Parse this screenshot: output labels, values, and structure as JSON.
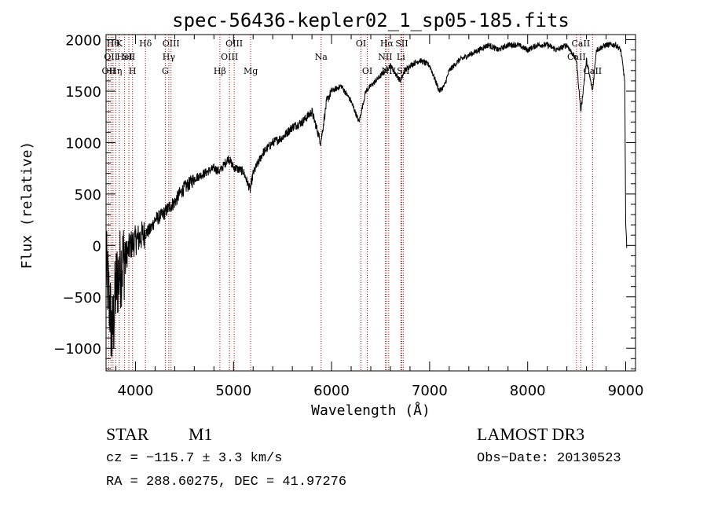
{
  "chart_data": {
    "type": "line",
    "title": "spec-56436-kepler02_1_sp05-185.fits",
    "xlabel": "Wavelength (Å)",
    "ylabel": "Flux (relative)",
    "xlim": [
      3700,
      9100
    ],
    "ylim": [
      -1220,
      2050
    ],
    "x_ticks": [
      4000,
      5000,
      6000,
      7000,
      8000,
      9000
    ],
    "y_ticks": [
      -1000,
      -500,
      0,
      500,
      1000,
      1500,
      2000
    ],
    "x_tick_labels": [
      "4000",
      "5000",
      "6000",
      "7000",
      "8000",
      "9000"
    ],
    "y_tick_labels": [
      "−1000",
      "−500",
      "0",
      "500",
      "1000",
      "1500",
      "2000"
    ],
    "line_color": "#000000",
    "marker_color": "#c00000",
    "grid": false,
    "series": [
      {
        "name": "spectrum",
        "anchors": [
          [
            3700,
            -200
          ],
          [
            3740,
            -600
          ],
          [
            3760,
            -900
          ],
          [
            3780,
            -700
          ],
          [
            3800,
            -400
          ],
          [
            3850,
            -200
          ],
          [
            3900,
            -100
          ],
          [
            3950,
            0
          ],
          [
            4000,
            50
          ],
          [
            4050,
            80
          ],
          [
            4100,
            120
          ],
          [
            4150,
            150
          ],
          [
            4200,
            250
          ],
          [
            4250,
            280
          ],
          [
            4300,
            320
          ],
          [
            4350,
            380
          ],
          [
            4400,
            420
          ],
          [
            4450,
            500
          ],
          [
            4500,
            560
          ],
          [
            4550,
            600
          ],
          [
            4600,
            650
          ],
          [
            4700,
            700
          ],
          [
            4800,
            750
          ],
          [
            4860,
            720
          ],
          [
            4900,
            780
          ],
          [
            4950,
            850
          ],
          [
            5000,
            760
          ],
          [
            5100,
            720
          ],
          [
            5170,
            540
          ],
          [
            5200,
            700
          ],
          [
            5300,
            900
          ],
          [
            5400,
            1000
          ],
          [
            5500,
            1050
          ],
          [
            5600,
            1150
          ],
          [
            5700,
            1200
          ],
          [
            5800,
            1300
          ],
          [
            5890,
            1000
          ],
          [
            5950,
            1400
          ],
          [
            6000,
            1500
          ],
          [
            6100,
            1550
          ],
          [
            6200,
            1400
          ],
          [
            6280,
            1200
          ],
          [
            6350,
            1500
          ],
          [
            6450,
            1600
          ],
          [
            6550,
            1700
          ],
          [
            6600,
            1750
          ],
          [
            6700,
            1600
          ],
          [
            6750,
            1700
          ],
          [
            6800,
            1750
          ],
          [
            6900,
            1800
          ],
          [
            7000,
            1750
          ],
          [
            7100,
            1500
          ],
          [
            7150,
            1550
          ],
          [
            7200,
            1700
          ],
          [
            7300,
            1800
          ],
          [
            7400,
            1850
          ],
          [
            7500,
            1900
          ],
          [
            7600,
            1950
          ],
          [
            7700,
            1900
          ],
          [
            7800,
            1950
          ],
          [
            7900,
            1950
          ],
          [
            8000,
            1900
          ],
          [
            8100,
            1950
          ],
          [
            8200,
            1950
          ],
          [
            8300,
            1900
          ],
          [
            8400,
            1950
          ],
          [
            8498,
            1800
          ],
          [
            8542,
            1300
          ],
          [
            8600,
            1800
          ],
          [
            8662,
            1500
          ],
          [
            8700,
            1900
          ],
          [
            8800,
            1950
          ],
          [
            8900,
            1950
          ],
          [
            8950,
            1900
          ],
          [
            8990,
            1600
          ],
          [
            9000,
            200
          ],
          [
            9010,
            0
          ]
        ]
      }
    ],
    "line_markers": [
      {
        "x": 3727,
        "label": "OII",
        "row": 3
      },
      {
        "x": 3750,
        "label": "OII",
        "row": 2
      },
      {
        "x": 3771,
        "label": "Hθ",
        "row": 1
      },
      {
        "x": 3798,
        "label": "Hη",
        "row": 3
      },
      {
        "x": 3835,
        "label": "K",
        "row": 1
      },
      {
        "x": 3889,
        "label": "HeI",
        "row": 2
      },
      {
        "x": 3933,
        "label": "SII",
        "row": 2
      },
      {
        "x": 3970,
        "label": "H",
        "row": 3
      },
      {
        "x": 4102,
        "label": "Hδ",
        "row": 1
      },
      {
        "x": 4304,
        "label": "G",
        "row": 3
      },
      {
        "x": 4340,
        "label": "Hγ",
        "row": 2
      },
      {
        "x": 4363,
        "label": "OIII",
        "row": 1
      },
      {
        "x": 4861,
        "label": "Hβ",
        "row": 3
      },
      {
        "x": 4959,
        "label": "OIII",
        "row": 2
      },
      {
        "x": 5007,
        "label": "OIII",
        "row": 1
      },
      {
        "x": 5175,
        "label": "Mg",
        "row": 3
      },
      {
        "x": 5893,
        "label": "Na",
        "row": 2
      },
      {
        "x": 6300,
        "label": "OI",
        "row": 1
      },
      {
        "x": 6364,
        "label": "OI",
        "row": 3
      },
      {
        "x": 6548,
        "label": "NII",
        "row": 2
      },
      {
        "x": 6563,
        "label": "Hα",
        "row": 1
      },
      {
        "x": 6583,
        "label": "NII",
        "row": 3
      },
      {
        "x": 6707,
        "label": "Li",
        "row": 2
      },
      {
        "x": 6716,
        "label": "SII",
        "row": 1
      },
      {
        "x": 6731,
        "label": "SII",
        "row": 3
      },
      {
        "x": 8498,
        "label": "CaII",
        "row": 2
      },
      {
        "x": 8542,
        "label": "CaII",
        "row": 1
      },
      {
        "x": 8662,
        "label": "CaII",
        "row": 3
      }
    ]
  },
  "info": {
    "object_class": "STAR",
    "subclass": "M1",
    "survey": "LAMOST DR3",
    "cz": "cz = −115.7 ± 3.3 km/s",
    "obs_date": "Obs−Date: 20130523",
    "coords": "RA = 288.60275, DEC =  41.97276"
  }
}
